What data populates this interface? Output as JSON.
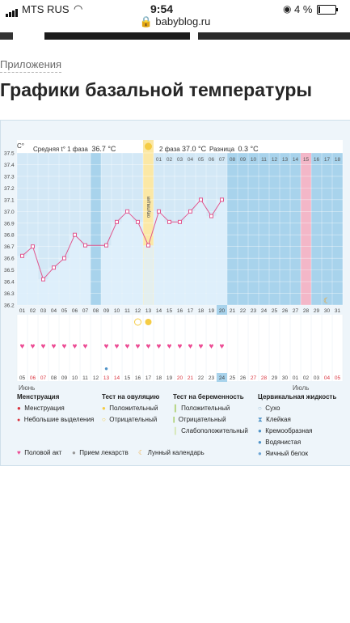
{
  "status": {
    "carrier": "MTS RUS",
    "time": "9:54",
    "battery": "4 %"
  },
  "browser": {
    "domain": "babyblog.ru"
  },
  "breadcrumb": "Приложения",
  "page_title": "Графики базальной температуры",
  "chart": {
    "unit_label": "C°",
    "phase1_label": "Средняя t° 1 фаза",
    "phase1_value": "36.7 °C",
    "ovulation_label": "овуляция",
    "phase2_label": "2 фаза",
    "phase2_value": "37.0 °C",
    "diff_label": "Разница",
    "diff_value": "0.3 °C",
    "month_start": "Июнь",
    "month_next": "Июль",
    "colors": {
      "phase1": "#d3e8f6",
      "phase2": "#a8d3ec",
      "ovulation": "#fbe8a6",
      "period": "#f3b7c8",
      "line": "#e0578f",
      "heart": "#ec4c94"
    }
  },
  "chart_data": {
    "type": "line",
    "ylim": [
      36.2,
      37.5
    ],
    "yticks": [
      "37.5",
      "37.4",
      "37.3",
      "37.2",
      "37.1",
      "37.0",
      "36.9",
      "36.8",
      "36.7",
      "36.6",
      "36.5",
      "36.4",
      "36.3",
      "36.2"
    ],
    "cycle_days": [
      "01",
      "02",
      "03",
      "04",
      "05",
      "06",
      "07",
      "08",
      "09",
      "10",
      "11",
      "12",
      "13",
      "14",
      "15",
      "16",
      "17",
      "18",
      "19",
      "20",
      "21",
      "22",
      "23",
      "24",
      "25",
      "26",
      "27",
      "28",
      "29",
      "30",
      "31"
    ],
    "dates": [
      "05",
      "06",
      "07",
      "08",
      "09",
      "10",
      "11",
      "12",
      "13",
      "14",
      "15",
      "16",
      "17",
      "18",
      "19",
      "20",
      "21",
      "22",
      "23",
      "24",
      "25",
      "26",
      "27",
      "28",
      "29",
      "30",
      "01",
      "02",
      "03",
      "04",
      "05"
    ],
    "phase2_days": [
      "01",
      "02",
      "03",
      "04",
      "05",
      "06",
      "07",
      "08",
      "09",
      "10",
      "11",
      "12",
      "13",
      "14",
      "15",
      "16",
      "17",
      "18"
    ],
    "series": [
      {
        "x": [
          1,
          2,
          3,
          4,
          5,
          6,
          7,
          9,
          10,
          11,
          12,
          13,
          14,
          15,
          16,
          17,
          18,
          19,
          20
        ],
        "values": [
          36.62,
          36.7,
          36.42,
          36.52,
          36.6,
          36.8,
          36.71,
          36.71,
          36.91,
          37.0,
          36.91,
          36.71,
          37.0,
          36.91,
          36.91,
          37.0,
          37.1,
          36.96,
          37.1
        ]
      }
    ],
    "ovulation_day": 13,
    "intercourse_days": [
      1,
      2,
      3,
      4,
      5,
      6,
      7,
      9,
      10,
      11,
      12,
      13,
      14,
      15,
      16,
      17,
      18,
      19,
      20
    ],
    "ovulation_test_negative_day": 12,
    "ovulation_test_positive_day": 13,
    "moon_day": 30,
    "mucus_day": 9
  },
  "legend": {
    "menstruation": {
      "title": "Менструация",
      "items": [
        "Менструация",
        "Небольшие выделения"
      ]
    },
    "ovulation_test": {
      "title": "Тест на овуляцию",
      "items": [
        "Положительный",
        "Отрицательный"
      ]
    },
    "pregnancy_test": {
      "title": "Тест на беременность",
      "items": [
        "Положительный",
        "Отрицательный",
        "Слабоположительный"
      ]
    },
    "cervical": {
      "title": "Цервикальная жидкость",
      "items": [
        "Сухо",
        "Клейкая",
        "Кремообразная",
        "Водянистая",
        "Яичный белок"
      ]
    },
    "bottom": [
      "Половой акт",
      "Прием лекарств",
      "Лунный календарь"
    ]
  }
}
